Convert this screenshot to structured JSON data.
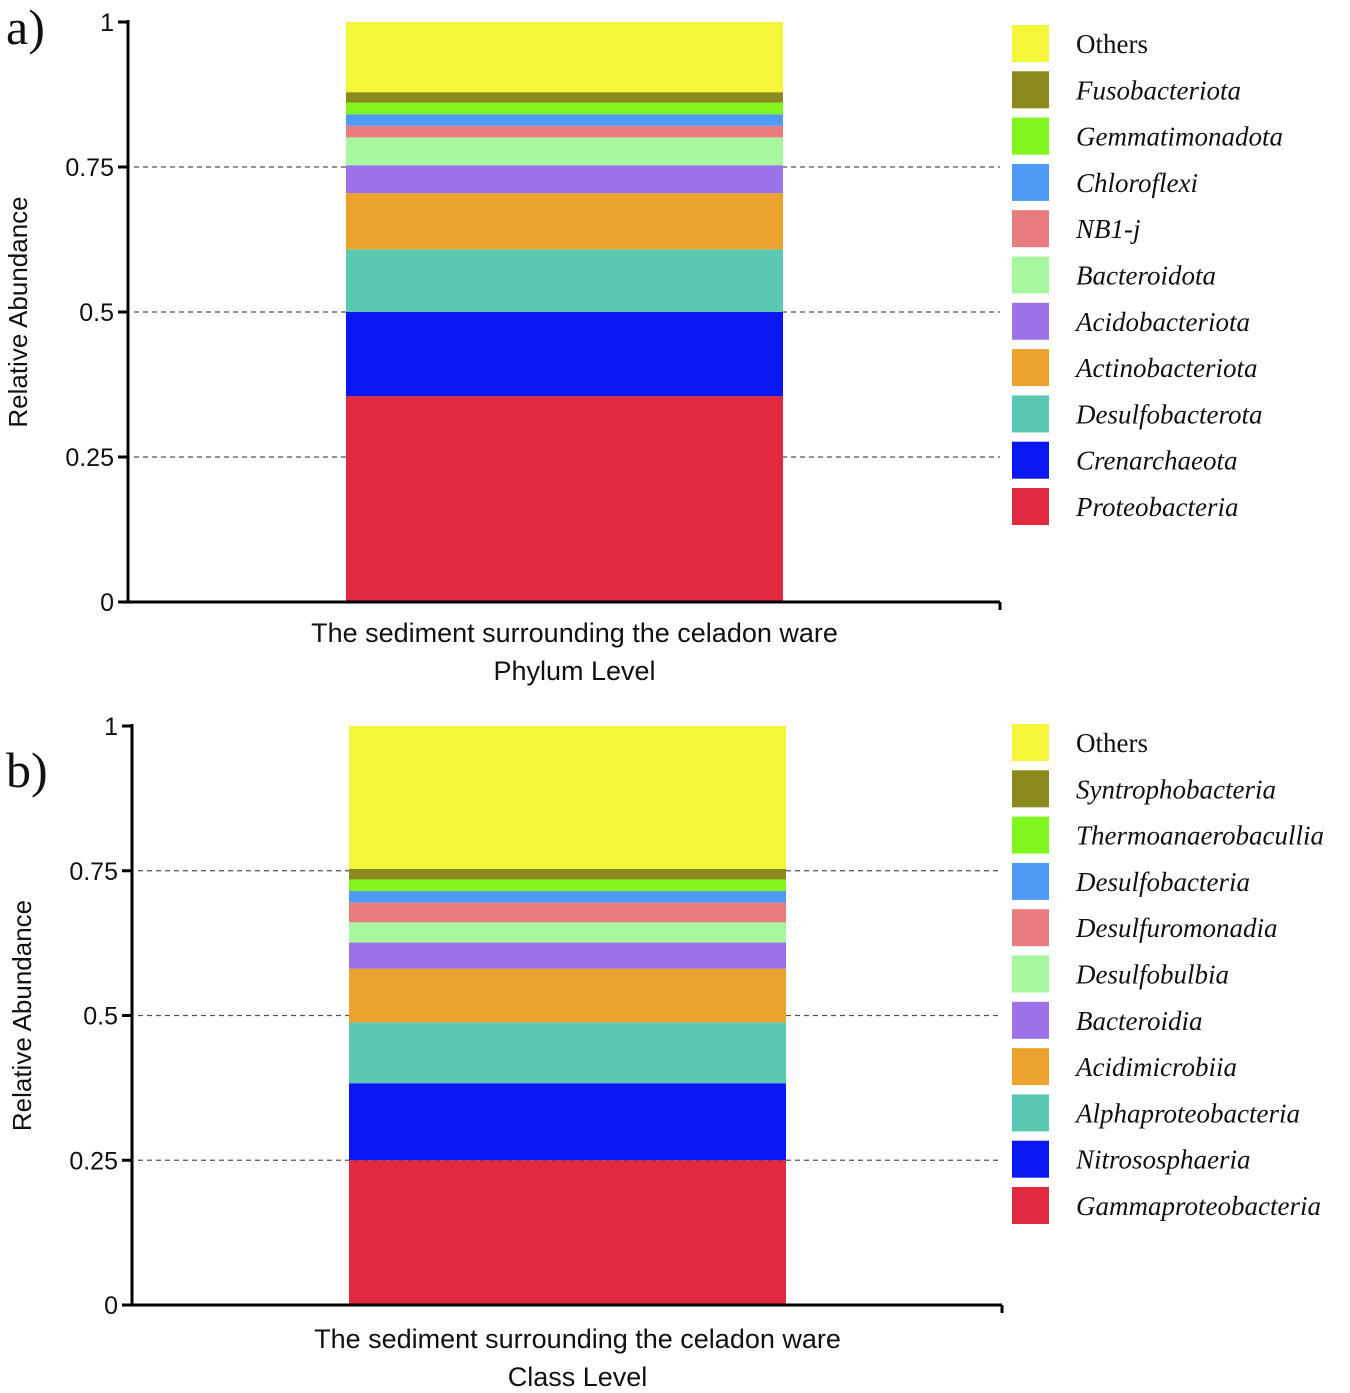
{
  "chart_data": [
    {
      "panel_label": "a)",
      "type": "bar",
      "stacked": true,
      "categories": [
        "The sediment surrounding the celadon ware"
      ],
      "xlabel": "Phylum Level",
      "ylabel": "Relative Abundance",
      "ylim": [
        0,
        1
      ],
      "yticks": [
        "0",
        "0.25",
        "0.5",
        "0.75",
        "1"
      ],
      "grid": "dashed horizontal at 0.25, 0.5, 0.75",
      "legend_position": "right",
      "series": [
        {
          "name": "Proteobacteria",
          "color": "#E12A3F",
          "values": [
            0.355
          ]
        },
        {
          "name": "Crenarchaeota",
          "color": "#0A17F2",
          "values": [
            0.145
          ]
        },
        {
          "name": "Desulfobacterota",
          "color": "#5BC8B4",
          "values": [
            0.108
          ]
        },
        {
          "name": "Actinobacteriota",
          "color": "#EBA22E",
          "values": [
            0.097
          ]
        },
        {
          "name": "Acidobacteriota",
          "color": "#9B72E8",
          "values": [
            0.048
          ]
        },
        {
          "name": "Bacteroidota",
          "color": "#A8F7A0",
          "values": [
            0.048
          ]
        },
        {
          "name": "NB1-j",
          "color": "#E87C7E",
          "values": [
            0.02
          ]
        },
        {
          "name": "Chloroflexi",
          "color": "#4E9AF5",
          "values": [
            0.02
          ]
        },
        {
          "name": "Gemmatimonadota",
          "color": "#82F51E",
          "values": [
            0.02
          ]
        },
        {
          "name": "Fusobacteriota",
          "color": "#8A8A1F",
          "values": [
            0.018
          ]
        },
        {
          "name": "Others",
          "color": "#F5F53A",
          "values": [
            0.121
          ]
        }
      ]
    },
    {
      "panel_label": "b)",
      "type": "bar",
      "stacked": true,
      "categories": [
        "The sediment surrounding the celadon ware"
      ],
      "xlabel": "Class Level",
      "ylabel": "Relative Abundance",
      "ylim": [
        0,
        1
      ],
      "yticks": [
        "0",
        "0.25",
        "0.5",
        "0.75",
        "1"
      ],
      "grid": "dashed horizontal at 0.25, 0.5, 0.75",
      "legend_position": "right",
      "series": [
        {
          "name": "Gammaproteobacteria",
          "color": "#E12A3F",
          "values": [
            0.25
          ]
        },
        {
          "name": "Nitrososphaeria",
          "color": "#0A17F2",
          "values": [
            0.133
          ]
        },
        {
          "name": "Alphaproteobacteria",
          "color": "#5BC8B4",
          "values": [
            0.105
          ]
        },
        {
          "name": "Acidimicrobiia",
          "color": "#EBA22E",
          "values": [
            0.093
          ]
        },
        {
          "name": "Bacteroidia",
          "color": "#9B72E8",
          "values": [
            0.045
          ]
        },
        {
          "name": "Desulfobulbia",
          "color": "#A8F7A0",
          "values": [
            0.035
          ]
        },
        {
          "name": "Desulfuromonadia",
          "color": "#E87C7E",
          "values": [
            0.034
          ]
        },
        {
          "name": "Desulfobacteria",
          "color": "#4E9AF5",
          "values": [
            0.02
          ]
        },
        {
          "name": "Thermoanaerobacullia",
          "color": "#82F51E",
          "values": [
            0.02
          ]
        },
        {
          "name": "Syntrophobacteria",
          "color": "#8A8A1F",
          "values": [
            0.018
          ]
        },
        {
          "name": "Others",
          "color": "#F5F53A",
          "values": [
            0.247
          ]
        }
      ]
    }
  ]
}
